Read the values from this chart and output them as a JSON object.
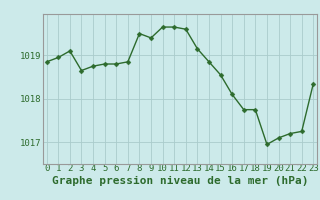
{
  "x": [
    0,
    1,
    2,
    3,
    4,
    5,
    6,
    7,
    8,
    9,
    10,
    11,
    12,
    13,
    14,
    15,
    16,
    17,
    18,
    19,
    20,
    21,
    22,
    23
  ],
  "y": [
    1018.85,
    1018.95,
    1019.1,
    1018.65,
    1018.75,
    1018.8,
    1018.8,
    1018.85,
    1019.5,
    1019.4,
    1019.65,
    1019.65,
    1019.6,
    1019.15,
    1018.85,
    1018.55,
    1018.1,
    1017.75,
    1017.75,
    1016.95,
    1017.1,
    1017.2,
    1017.25,
    1018.35
  ],
  "line_color": "#2d6b2d",
  "marker_color": "#2d6b2d",
  "bg_color": "#cceaea",
  "grid_color": "#aacccc",
  "title": "Graphe pression niveau de la mer (hPa)",
  "xlabel_ticks": [
    "0",
    "1",
    "2",
    "3",
    "4",
    "5",
    "6",
    "7",
    "8",
    "9",
    "10",
    "11",
    "12",
    "13",
    "14",
    "15",
    "16",
    "17",
    "18",
    "19",
    "20",
    "21",
    "22",
    "23"
  ],
  "yticks": [
    1017,
    1018,
    1019
  ],
  "ylim": [
    1016.5,
    1019.95
  ],
  "xlim": [
    -0.3,
    23.3
  ],
  "title_fontsize": 8,
  "tick_fontsize": 6.5
}
